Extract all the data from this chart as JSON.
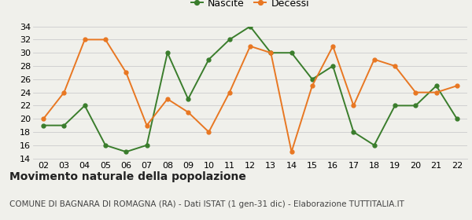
{
  "years": [
    "02",
    "03",
    "04",
    "05",
    "06",
    "07",
    "08",
    "09",
    "10",
    "11",
    "12",
    "13",
    "14",
    "15",
    "16",
    "17",
    "18",
    "19",
    "20",
    "21",
    "22"
  ],
  "nascite": [
    19,
    19,
    22,
    16,
    15,
    16,
    30,
    23,
    29,
    32,
    34,
    30,
    30,
    26,
    28,
    18,
    16,
    22,
    22,
    25,
    20
  ],
  "decessi": [
    20,
    24,
    32,
    32,
    27,
    19,
    23,
    21,
    18,
    24,
    31,
    30,
    15,
    25,
    31,
    22,
    29,
    28,
    24,
    24,
    25
  ],
  "nascite_color": "#3a7d2c",
  "decessi_color": "#e87722",
  "background_color": "#f0f0eb",
  "grid_color": "#cccccc",
  "ylim": [
    14,
    34
  ],
  "yticks": [
    14,
    16,
    18,
    20,
    22,
    24,
    26,
    28,
    30,
    32,
    34
  ],
  "title": "Movimento naturale della popolazione",
  "subtitle": "COMUNE DI BAGNARA DI ROMAGNA (RA) - Dati ISTAT (1 gen-31 dic) - Elaborazione TUTTITALIA.IT",
  "legend_nascite": "Nascite",
  "legend_decessi": "Decessi",
  "title_fontsize": 10,
  "subtitle_fontsize": 7.5,
  "tick_fontsize": 8,
  "legend_fontsize": 9
}
